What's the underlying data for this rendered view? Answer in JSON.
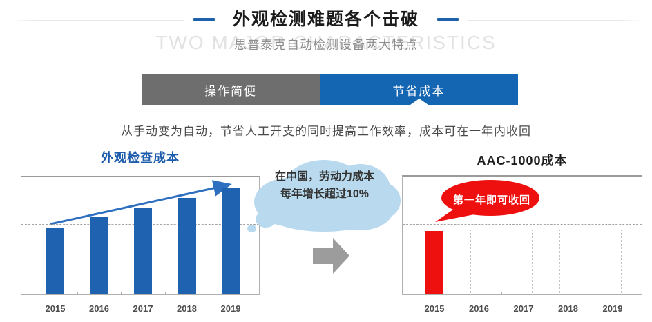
{
  "header": {
    "title": "外观检测难题各个击破",
    "watermark": "TWO MAJOR CHARACTERISTICS",
    "subtitle": "思普泰克自动检测设备两大特点"
  },
  "tabs": [
    {
      "label": "操作简便",
      "active": false
    },
    {
      "label": "节省成本",
      "active": true
    }
  ],
  "description": "从手动变为自动，节省人工开支的同时提高工作效率，成本可在一年内收回",
  "cloud_callout": {
    "line1": "在中国，劳动力成本",
    "line2": "每年增长超过10%"
  },
  "bubble_callout": "第一年即可收回",
  "colors": {
    "accent_blue": "#1466b3",
    "bar_blue": "#1f63b0",
    "bar_red": "#ee0f0f",
    "tab_gray": "#6e6e6e",
    "cloud_blue": "#b9d9ee",
    "arrow_gray": "#9c9c9c",
    "trend_arrow_blue": "#2e6fc0",
    "title_dash_blue": "#1e61ab"
  },
  "chart_data": [
    {
      "type": "bar",
      "title": "外观检查成本",
      "categories": [
        "2015",
        "2016",
        "2017",
        "2018",
        "2019"
      ],
      "values": [
        100,
        115,
        130,
        144,
        159
      ],
      "unit": "relative labor-inspection cost (2015 = 100, no numeric axis shown)",
      "bar_style": "bar-solid-blue",
      "reference_line": 104,
      "annotations": [
        "gray dashed horizontal reference line at 2015 level",
        "blue straight arrow rising from 2015 bar top to above 2019 bar"
      ],
      "xlabel": "year",
      "ylabel": "",
      "grid": false,
      "legend": false
    },
    {
      "type": "bar",
      "title": "AAC-1000成本",
      "categories": [
        "2015",
        "2016",
        "2017",
        "2018",
        "2019"
      ],
      "values": [
        95,
        null,
        null,
        null,
        null
      ],
      "placeholder_values": [
        null,
        97,
        97,
        97,
        97
      ],
      "unit": "relative cost (same unlabeled scale; 2016-2019 are empty dashed outlines = no cost)",
      "bar_style": "bar-solid-red",
      "reference_line": 104,
      "annotations": [
        "gray dashed horizontal reference line",
        "red speech bubble: cost recovered in the first year"
      ],
      "xlabel": "year",
      "ylabel": "",
      "grid": false,
      "legend": false
    }
  ]
}
